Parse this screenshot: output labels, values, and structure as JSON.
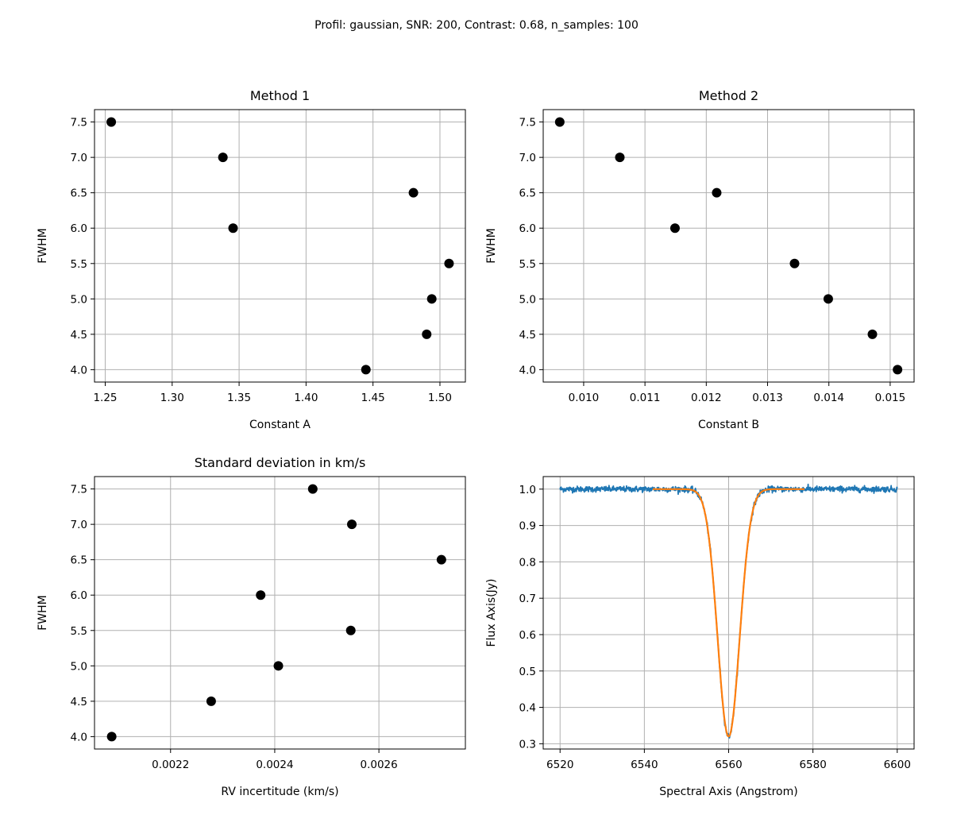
{
  "suptitle": "Profil: gaussian, SNR: 200, Contrast: 0.68, n_samples: 100",
  "chart_data": [
    {
      "type": "scatter",
      "title": "Method 1",
      "xlabel": "Constant A",
      "ylabel": "FWHM",
      "xlim": [
        1.242,
        1.519
      ],
      "ylim": [
        3.825,
        7.675
      ],
      "xticks": [
        1.25,
        1.3,
        1.35,
        1.4,
        1.45,
        1.5
      ],
      "xtick_labels": [
        "1.25",
        "1.30",
        "1.35",
        "1.40",
        "1.45",
        "1.50"
      ],
      "yticks": [
        4.0,
        4.5,
        5.0,
        5.5,
        6.0,
        6.5,
        7.0,
        7.5
      ],
      "ytick_labels": [
        "4.0",
        "4.5",
        "5.0",
        "5.5",
        "6.0",
        "6.5",
        "7.0",
        "7.5"
      ],
      "grid": true,
      "marker_color": "#000000",
      "x": [
        1.2545,
        1.3379,
        1.3455,
        1.4802,
        1.5068,
        1.4939,
        1.4901,
        1.4447
      ],
      "y": [
        7.5,
        7.0,
        6.0,
        6.5,
        5.5,
        5.0,
        4.5,
        4.0
      ]
    },
    {
      "type": "scatter",
      "title": "Method 2",
      "xlabel": "Constant B",
      "ylabel": "FWHM",
      "xlim": [
        0.00934,
        0.01539
      ],
      "ylim": [
        3.825,
        7.675
      ],
      "xticks": [
        0.01,
        0.011,
        0.012,
        0.013,
        0.014,
        0.015
      ],
      "xtick_labels": [
        "0.010",
        "0.011",
        "0.012",
        "0.013",
        "0.014",
        "0.015"
      ],
      "yticks": [
        4.0,
        4.5,
        5.0,
        5.5,
        6.0,
        6.5,
        7.0,
        7.5
      ],
      "ytick_labels": [
        "4.0",
        "4.5",
        "5.0",
        "5.5",
        "6.0",
        "6.5",
        "7.0",
        "7.5"
      ],
      "grid": true,
      "marker_color": "#000000",
      "x": [
        0.00961,
        0.01059,
        0.01149,
        0.01217,
        0.01344,
        0.01399,
        0.01471,
        0.01512
      ],
      "y": [
        7.5,
        7.0,
        6.0,
        6.5,
        5.5,
        5.0,
        4.5,
        4.0
      ]
    },
    {
      "type": "scatter",
      "title": "Standard deviation in km/s",
      "xlabel": "RV incertitude (km/s)",
      "ylabel": "FWHM",
      "xlim": [
        0.002054,
        0.002766
      ],
      "ylim": [
        3.825,
        7.675
      ],
      "xticks": [
        0.0022,
        0.0024,
        0.0026
      ],
      "xtick_labels": [
        "0.0022",
        "0.0024",
        "0.0026"
      ],
      "yticks": [
        4.0,
        4.5,
        5.0,
        5.5,
        6.0,
        6.5,
        7.0,
        7.5
      ],
      "ytick_labels": [
        "4.0",
        "4.5",
        "5.0",
        "5.5",
        "6.0",
        "6.5",
        "7.0",
        "7.5"
      ],
      "grid": true,
      "marker_color": "#000000",
      "x": [
        0.002473,
        0.002548,
        0.00272,
        0.002373,
        0.002546,
        0.002407,
        0.002278,
        0.002087
      ],
      "y": [
        7.5,
        7.0,
        6.5,
        6.0,
        5.5,
        5.0,
        4.5,
        4.0
      ]
    },
    {
      "type": "line",
      "title": "",
      "xlabel": "Spectral Axis (Angstrom)",
      "ylabel": "Flux Axis(Jy)",
      "xlim": [
        6516,
        6604
      ],
      "ylim": [
        0.2855,
        1.0345
      ],
      "xticks": [
        6520,
        6540,
        6560,
        6580,
        6600
      ],
      "xtick_labels": [
        "6520",
        "6540",
        "6560",
        "6580",
        "6600"
      ],
      "yticks": [
        0.3,
        0.4,
        0.5,
        0.6,
        0.7,
        0.8,
        0.9,
        1.0
      ],
      "ytick_labels": [
        "0.3",
        "0.4",
        "0.5",
        "0.6",
        "0.7",
        "0.8",
        "0.9",
        "1.0"
      ],
      "grid": true,
      "series": [
        {
          "kind": "observed spectrum",
          "color": "#1f77b4",
          "x_range": [
            6520,
            6600
          ],
          "line_center": 6560,
          "line_depth": 0.68,
          "line_sigma": 2.6,
          "noise_sigma": 0.005
        },
        {
          "kind": "gaussian fit",
          "color": "#ff7f0e",
          "x_range": [
            6542,
            6578
          ],
          "line_center": 6560,
          "line_depth": 0.68,
          "line_sigma": 2.6
        }
      ]
    }
  ]
}
